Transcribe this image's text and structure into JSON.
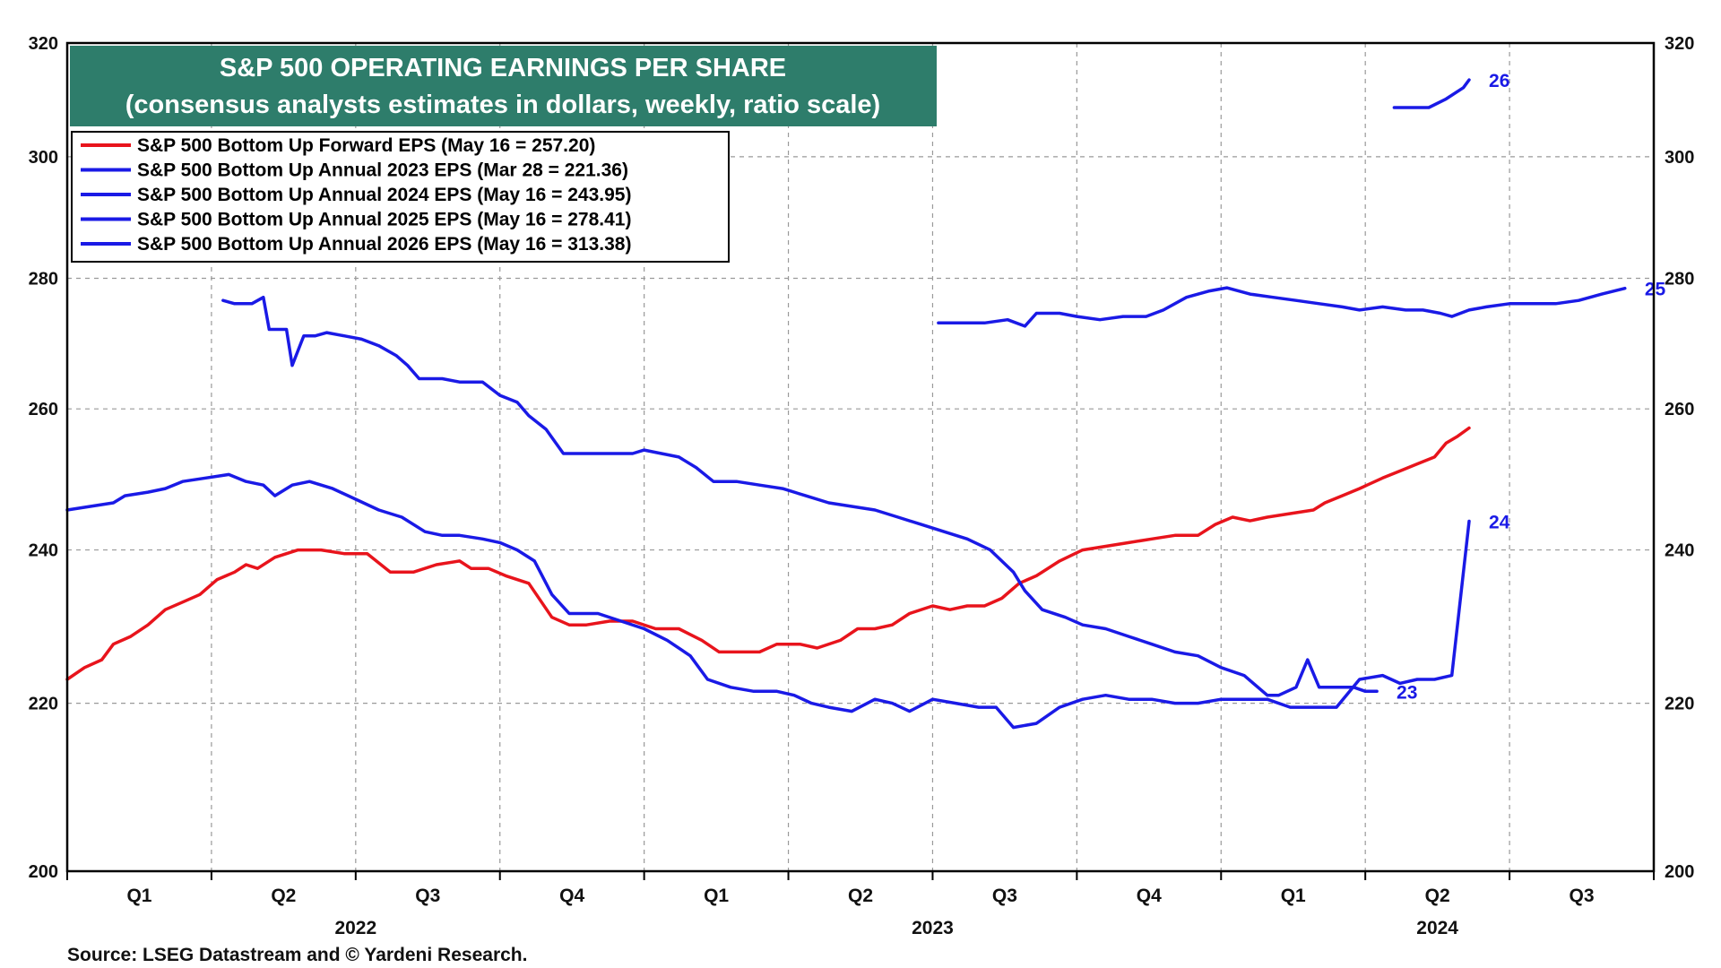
{
  "chart_data": {
    "type": "line",
    "title": "S&P 500 OPERATING EARNINGS PER SHARE",
    "subtitle": "(consensus analysts estimates in dollars, weekly, ratio scale)",
    "source": "Source: LSEG Datastream and © Yardeni Research.",
    "y_scale": "log",
    "ylim": [
      200,
      320
    ],
    "y_ticks": [
      200,
      220,
      240,
      260,
      280,
      300,
      320
    ],
    "y_tick_labels": [
      "200",
      "220",
      "240",
      "260",
      "280",
      "300",
      "320"
    ],
    "xlim": [
      2022.0,
      2024.75
    ],
    "quarter_labels": [
      {
        "label": "Q1",
        "x": 2022.125
      },
      {
        "label": "Q2",
        "x": 2022.375
      },
      {
        "label": "Q3",
        "x": 2022.625
      },
      {
        "label": "Q4",
        "x": 2022.875
      },
      {
        "label": "Q1",
        "x": 2023.125
      },
      {
        "label": "Q2",
        "x": 2023.375
      },
      {
        "label": "Q3",
        "x": 2023.625
      },
      {
        "label": "Q4",
        "x": 2023.875
      },
      {
        "label": "Q1",
        "x": 2024.125
      },
      {
        "label": "Q2",
        "x": 2024.375
      },
      {
        "label": "Q3",
        "x": 2024.625
      }
    ],
    "year_labels": [
      {
        "label": "2022",
        "x": 2022.5
      },
      {
        "label": "2023",
        "x": 2023.5
      },
      {
        "label": "2024",
        "x": 2024.375
      }
    ],
    "colors": {
      "forward": "#e8141c",
      "annual": "#1a1ae6",
      "title_bg": "#2e7d6b",
      "grid": "#999999"
    },
    "legend": [
      {
        "label": "S&P 500 Bottom Up Forward EPS (May 16 = 257.20)",
        "color": "#e8141c"
      },
      {
        "label": "S&P 500 Bottom Up Annual 2023 EPS (Mar 28 = 221.36)",
        "color": "#1a1ae6"
      },
      {
        "label": "S&P 500 Bottom Up Annual 2024 EPS (May 16 = 243.95)",
        "color": "#1a1ae6"
      },
      {
        "label": "S&P 500 Bottom Up Annual 2025 EPS (May 16 = 278.41)",
        "color": "#1a1ae6"
      },
      {
        "label": "S&P 500 Bottom Up Annual 2026 EPS (May 16 = 313.38)",
        "color": "#1a1ae6"
      }
    ],
    "series": [
      {
        "name": "S&P 500 Bottom Up Forward EPS",
        "color": "#e8141c",
        "end_label": "",
        "points": [
          [
            2022.0,
            223.0
          ],
          [
            2022.03,
            224.5
          ],
          [
            2022.06,
            225.5
          ],
          [
            2022.08,
            227.5
          ],
          [
            2022.11,
            228.5
          ],
          [
            2022.14,
            230.0
          ],
          [
            2022.17,
            232.0
          ],
          [
            2022.2,
            233.0
          ],
          [
            2022.23,
            234.0
          ],
          [
            2022.26,
            236.0
          ],
          [
            2022.29,
            237.0
          ],
          [
            2022.31,
            238.0
          ],
          [
            2022.33,
            237.5
          ],
          [
            2022.36,
            239.0
          ],
          [
            2022.4,
            240.0
          ],
          [
            2022.44,
            240.0
          ],
          [
            2022.48,
            239.5
          ],
          [
            2022.52,
            239.5
          ],
          [
            2022.56,
            237.0
          ],
          [
            2022.6,
            237.0
          ],
          [
            2022.64,
            238.0
          ],
          [
            2022.68,
            238.5
          ],
          [
            2022.7,
            237.5
          ],
          [
            2022.73,
            237.5
          ],
          [
            2022.76,
            236.5
          ],
          [
            2022.8,
            235.5
          ],
          [
            2022.84,
            231.0
          ],
          [
            2022.87,
            230.0
          ],
          [
            2022.9,
            230.0
          ],
          [
            2022.94,
            230.5
          ],
          [
            2022.98,
            230.5
          ],
          [
            2023.02,
            229.5
          ],
          [
            2023.06,
            229.5
          ],
          [
            2023.1,
            228.0
          ],
          [
            2023.13,
            226.5
          ],
          [
            2023.16,
            226.5
          ],
          [
            2023.2,
            226.5
          ],
          [
            2023.23,
            227.5
          ],
          [
            2023.27,
            227.5
          ],
          [
            2023.3,
            227.0
          ],
          [
            2023.34,
            228.0
          ],
          [
            2023.37,
            229.5
          ],
          [
            2023.4,
            229.5
          ],
          [
            2023.43,
            230.0
          ],
          [
            2023.46,
            231.5
          ],
          [
            2023.5,
            232.5
          ],
          [
            2023.53,
            232.0
          ],
          [
            2023.56,
            232.5
          ],
          [
            2023.59,
            232.5
          ],
          [
            2023.62,
            233.5
          ],
          [
            2023.65,
            235.5
          ],
          [
            2023.68,
            236.5
          ],
          [
            2023.72,
            238.5
          ],
          [
            2023.76,
            240.0
          ],
          [
            2023.8,
            240.5
          ],
          [
            2023.84,
            241.0
          ],
          [
            2023.88,
            241.5
          ],
          [
            2023.92,
            242.0
          ],
          [
            2023.96,
            242.0
          ],
          [
            2023.99,
            243.5
          ],
          [
            2024.02,
            244.5
          ],
          [
            2024.05,
            244.0
          ],
          [
            2024.08,
            244.5
          ],
          [
            2024.12,
            245.0
          ],
          [
            2024.16,
            245.5
          ],
          [
            2024.18,
            246.5
          ],
          [
            2024.21,
            247.5
          ],
          [
            2024.24,
            248.5
          ],
          [
            2024.28,
            250.0
          ],
          [
            2024.31,
            251.0
          ],
          [
            2024.34,
            252.0
          ],
          [
            2024.37,
            253.0
          ],
          [
            2024.39,
            255.0
          ],
          [
            2024.41,
            256.0
          ],
          [
            2024.43,
            257.2
          ]
        ]
      },
      {
        "name": "S&P 500 Bottom Up Annual 2023 EPS",
        "color": "#1a1ae6",
        "end_label": "23",
        "points": [
          [
            2022.27,
            276.5
          ],
          [
            2022.29,
            276.0
          ],
          [
            2022.32,
            276.0
          ],
          [
            2022.34,
            277.0
          ],
          [
            2022.35,
            272.0
          ],
          [
            2022.38,
            272.0
          ],
          [
            2022.39,
            266.5
          ],
          [
            2022.41,
            271.0
          ],
          [
            2022.43,
            271.0
          ],
          [
            2022.45,
            271.5
          ],
          [
            2022.48,
            271.0
          ],
          [
            2022.51,
            270.5
          ],
          [
            2022.54,
            269.5
          ],
          [
            2022.57,
            268.0
          ],
          [
            2022.59,
            266.5
          ],
          [
            2022.61,
            264.5
          ],
          [
            2022.65,
            264.5
          ],
          [
            2022.68,
            264.0
          ],
          [
            2022.7,
            264.0
          ],
          [
            2022.72,
            264.0
          ],
          [
            2022.75,
            262.0
          ],
          [
            2022.78,
            261.0
          ],
          [
            2022.8,
            259.0
          ],
          [
            2022.83,
            257.0
          ],
          [
            2022.86,
            253.5
          ],
          [
            2022.9,
            253.5
          ],
          [
            2022.94,
            253.5
          ],
          [
            2022.98,
            253.5
          ],
          [
            2023.0,
            254.0
          ],
          [
            2023.03,
            253.5
          ],
          [
            2023.06,
            253.0
          ],
          [
            2023.09,
            251.5
          ],
          [
            2023.12,
            249.5
          ],
          [
            2023.16,
            249.5
          ],
          [
            2023.2,
            249.0
          ],
          [
            2023.24,
            248.5
          ],
          [
            2023.28,
            247.5
          ],
          [
            2023.32,
            246.5
          ],
          [
            2023.36,
            246.0
          ],
          [
            2023.4,
            245.5
          ],
          [
            2023.44,
            244.5
          ],
          [
            2023.48,
            243.5
          ],
          [
            2023.52,
            242.5
          ],
          [
            2023.56,
            241.5
          ],
          [
            2023.6,
            240.0
          ],
          [
            2023.64,
            237.0
          ],
          [
            2023.66,
            234.5
          ],
          [
            2023.69,
            232.0
          ],
          [
            2023.73,
            231.0
          ],
          [
            2023.76,
            230.0
          ],
          [
            2023.8,
            229.5
          ],
          [
            2023.84,
            228.5
          ],
          [
            2023.88,
            227.5
          ],
          [
            2023.92,
            226.5
          ],
          [
            2023.96,
            226.0
          ],
          [
            2024.0,
            224.5
          ],
          [
            2024.04,
            223.5
          ],
          [
            2024.08,
            221.0
          ],
          [
            2024.1,
            221.0
          ],
          [
            2024.13,
            222.0
          ],
          [
            2024.15,
            225.5
          ],
          [
            2024.17,
            222.0
          ],
          [
            2024.2,
            222.0
          ],
          [
            2024.23,
            222.0
          ],
          [
            2024.25,
            221.5
          ],
          [
            2024.27,
            221.5
          ]
        ]
      },
      {
        "name": "S&P 500 Bottom Up Annual 2024 EPS",
        "color": "#1a1ae6",
        "end_label": "24",
        "points": [
          [
            2022.0,
            245.5
          ],
          [
            2022.04,
            246.0
          ],
          [
            2022.08,
            246.5
          ],
          [
            2022.1,
            247.5
          ],
          [
            2022.14,
            248.0
          ],
          [
            2022.17,
            248.5
          ],
          [
            2022.2,
            249.5
          ],
          [
            2022.24,
            250.0
          ],
          [
            2022.28,
            250.5
          ],
          [
            2022.31,
            249.5
          ],
          [
            2022.34,
            249.0
          ],
          [
            2022.36,
            247.5
          ],
          [
            2022.39,
            249.0
          ],
          [
            2022.42,
            249.5
          ],
          [
            2022.46,
            248.5
          ],
          [
            2022.5,
            247.0
          ],
          [
            2022.54,
            245.5
          ],
          [
            2022.58,
            244.5
          ],
          [
            2022.62,
            242.5
          ],
          [
            2022.65,
            242.0
          ],
          [
            2022.68,
            242.0
          ],
          [
            2022.72,
            241.5
          ],
          [
            2022.75,
            241.0
          ],
          [
            2022.78,
            240.0
          ],
          [
            2022.81,
            238.5
          ],
          [
            2022.84,
            234.0
          ],
          [
            2022.87,
            231.5
          ],
          [
            2022.92,
            231.5
          ],
          [
            2022.96,
            230.5
          ],
          [
            2023.0,
            229.5
          ],
          [
            2023.04,
            228.0
          ],
          [
            2023.08,
            226.0
          ],
          [
            2023.11,
            223.0
          ],
          [
            2023.15,
            222.0
          ],
          [
            2023.19,
            221.5
          ],
          [
            2023.23,
            221.5
          ],
          [
            2023.26,
            221.0
          ],
          [
            2023.29,
            220.0
          ],
          [
            2023.32,
            219.5
          ],
          [
            2023.36,
            219.0
          ],
          [
            2023.4,
            220.5
          ],
          [
            2023.43,
            220.0
          ],
          [
            2023.46,
            219.0
          ],
          [
            2023.5,
            220.5
          ],
          [
            2023.54,
            220.0
          ],
          [
            2023.58,
            219.5
          ],
          [
            2023.61,
            219.5
          ],
          [
            2023.64,
            217.0
          ],
          [
            2023.68,
            217.5
          ],
          [
            2023.72,
            219.5
          ],
          [
            2023.76,
            220.5
          ],
          [
            2023.8,
            221.0
          ],
          [
            2023.84,
            220.5
          ],
          [
            2023.88,
            220.5
          ],
          [
            2023.92,
            220.0
          ],
          [
            2023.96,
            220.0
          ],
          [
            2024.0,
            220.5
          ],
          [
            2024.04,
            220.5
          ],
          [
            2024.08,
            220.5
          ],
          [
            2024.12,
            219.5
          ],
          [
            2024.16,
            219.5
          ],
          [
            2024.2,
            219.5
          ],
          [
            2024.24,
            223.0
          ],
          [
            2024.28,
            223.5
          ],
          [
            2024.31,
            222.5
          ],
          [
            2024.34,
            223.0
          ],
          [
            2024.37,
            223.0
          ],
          [
            2024.4,
            223.5
          ],
          [
            2024.43,
            243.95
          ]
        ]
      },
      {
        "name": "S&P 500 Bottom Up Annual 2025 EPS",
        "color": "#1a1ae6",
        "end_label": "25",
        "points": [
          [
            2023.51,
            273.0
          ],
          [
            2023.55,
            273.0
          ],
          [
            2023.59,
            273.0
          ],
          [
            2023.63,
            273.5
          ],
          [
            2023.66,
            272.5
          ],
          [
            2023.68,
            274.5
          ],
          [
            2023.72,
            274.5
          ],
          [
            2023.75,
            274.0
          ],
          [
            2023.79,
            273.5
          ],
          [
            2023.83,
            274.0
          ],
          [
            2023.87,
            274.0
          ],
          [
            2023.9,
            275.0
          ],
          [
            2023.94,
            277.0
          ],
          [
            2023.98,
            278.0
          ],
          [
            2024.01,
            278.5
          ],
          [
            2024.05,
            277.5
          ],
          [
            2024.09,
            277.0
          ],
          [
            2024.13,
            276.5
          ],
          [
            2024.17,
            276.0
          ],
          [
            2024.21,
            275.5
          ],
          [
            2024.24,
            275.0
          ],
          [
            2024.28,
            275.5
          ],
          [
            2024.32,
            275.0
          ],
          [
            2024.35,
            275.0
          ],
          [
            2024.38,
            274.5
          ],
          [
            2024.4,
            274.0
          ],
          [
            2024.43,
            275.0
          ],
          [
            2024.46,
            275.5
          ],
          [
            2024.5,
            276.0
          ],
          [
            2024.54,
            276.0
          ],
          [
            2024.58,
            276.0
          ],
          [
            2024.62,
            276.5
          ],
          [
            2024.66,
            277.5
          ],
          [
            2024.7,
            278.41
          ]
        ]
      },
      {
        "name": "S&P 500 Bottom Up Annual 2026 EPS",
        "color": "#1a1ae6",
        "end_label": "26",
        "points": [
          [
            2024.3,
            308.5
          ],
          [
            2024.33,
            308.5
          ],
          [
            2024.36,
            308.5
          ],
          [
            2024.39,
            310.0
          ],
          [
            2024.42,
            312.0
          ],
          [
            2024.43,
            313.38
          ]
        ]
      }
    ]
  }
}
